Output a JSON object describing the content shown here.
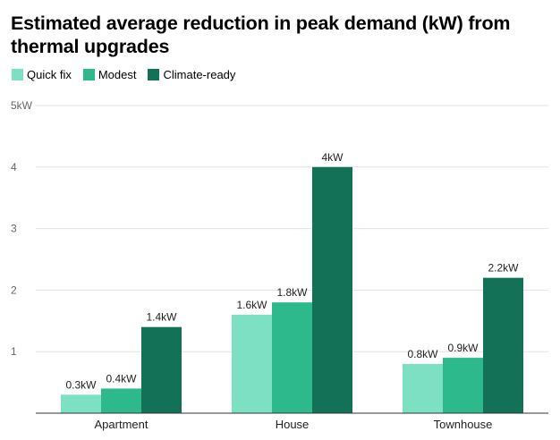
{
  "title": "Estimated average reduction in peak demand (kW) from thermal upgrades",
  "chart_data": {
    "type": "bar",
    "title": "Estimated average reduction in peak demand (kW) from thermal upgrades",
    "xlabel": "",
    "ylabel": "",
    "categories": [
      "Apartment",
      "House",
      "Townhouse"
    ],
    "series": [
      {
        "name": "Quick fix",
        "color": "#7ee0c3",
        "values": [
          0.3,
          1.6,
          0.8
        ],
        "labels": [
          "0.3kW",
          "1.6kW",
          "0.8kW"
        ]
      },
      {
        "name": "Modest",
        "color": "#2db98c",
        "values": [
          0.4,
          1.8,
          0.9
        ],
        "labels": [
          "0.4kW",
          "1.8kW",
          "0.9kW"
        ]
      },
      {
        "name": "Climate-ready",
        "color": "#137157",
        "values": [
          1.4,
          4.0,
          2.2
        ],
        "labels": [
          "1.4kW",
          "4kW",
          "2.2kW"
        ]
      }
    ],
    "ylim": [
      0,
      5
    ],
    "yticks": [
      {
        "value": 1,
        "label": "1"
      },
      {
        "value": 2,
        "label": "2"
      },
      {
        "value": 3,
        "label": "3"
      },
      {
        "value": 4,
        "label": "4"
      },
      {
        "value": 5,
        "label": "5kW"
      }
    ],
    "grid": true,
    "legend_position": "top-left"
  }
}
